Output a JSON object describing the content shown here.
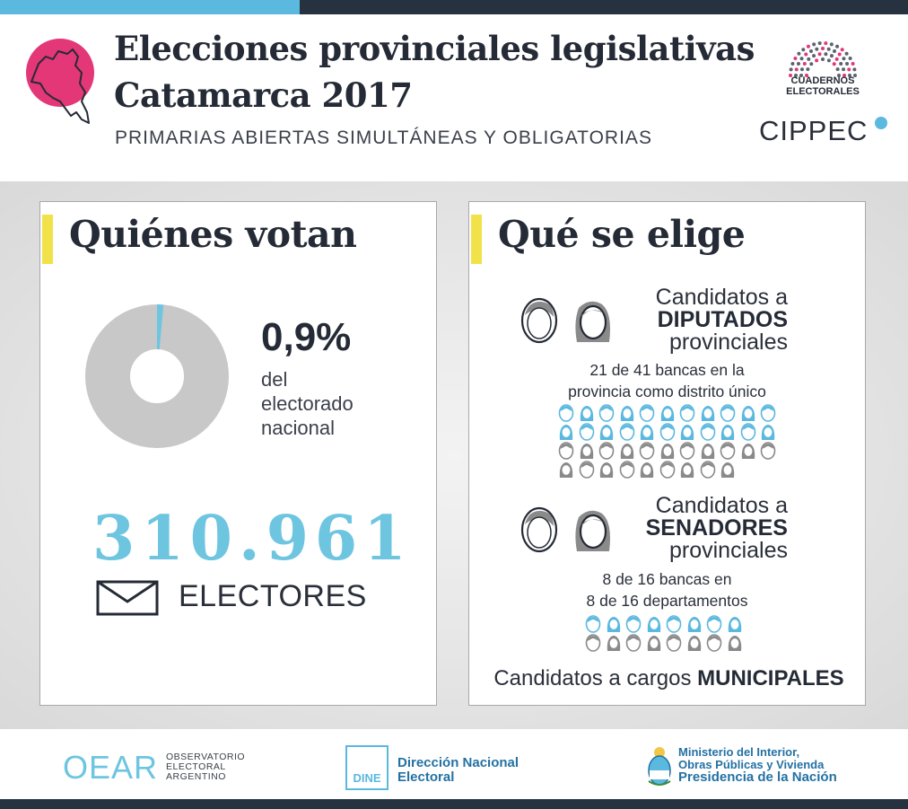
{
  "colors": {
    "accent_blue": "#6ec5e0",
    "accent_pink": "#e33777",
    "accent_yellow": "#f2e24a",
    "dark": "#252b36",
    "gray": "#c8c8c8",
    "seat_blue": "#5bb8df",
    "seat_gray": "#8a8a8a"
  },
  "header": {
    "title_line1": "Elecciones provinciales legislativas",
    "title_line2": "Catamarca 2017",
    "subtitle": "PRIMARIAS ABIERTAS SIMULTÁNEAS Y OBLIGATORIAS",
    "logo_cuadernos_line1": "CUADERNOS",
    "logo_cuadernos_line2": "ELECTORALES",
    "logo_cippec": "CIPPEC"
  },
  "quienes_votan": {
    "title": "Quiénes votan",
    "share_pct": 0.9,
    "share_label": "0,9%",
    "share_desc_1": "del",
    "share_desc_2": "electorado",
    "share_desc_3": "nacional",
    "electores_count": "310.961",
    "electores_label": "ELECTORES"
  },
  "que_se_elige": {
    "title": "Qué se elige",
    "diputados": {
      "line1": "Candidatos a",
      "line2": "DIPUTADOS",
      "line3": "provinciales",
      "seats_line1": "21 de 41 bancas en la",
      "seats_line2": "provincia como distrito único",
      "seats_elected": 21,
      "seats_total": 41
    },
    "senadores": {
      "line1": "Candidatos a",
      "line2": "SENADORES",
      "line3": "provinciales",
      "seats_line1": "8 de 16 bancas en",
      "seats_line2": "8 de 16 departamentos",
      "seats_elected": 8,
      "seats_total": 16
    },
    "municipales_prefix": "Candidatos a cargos ",
    "municipales_strong": "MUNICIPALES"
  },
  "footer": {
    "oear_logo": "OEAR",
    "oear_line1": "OBSERVATORIO",
    "oear_line2": "ELECTORAL",
    "oear_line3": "ARGENTINO",
    "dine_logo": "DINE",
    "dine_line1": "Dirección Nacional",
    "dine_line2": "Electoral",
    "min_line1": "Ministerio del Interior,",
    "min_line2": "Obras Públicas y Vivienda",
    "min_line3": "Presidencia de la Nación"
  }
}
